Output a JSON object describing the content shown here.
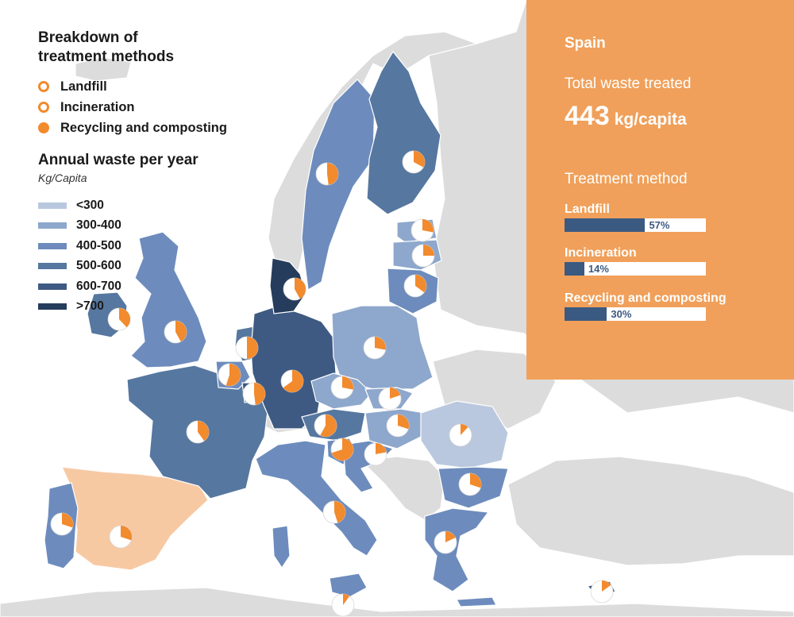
{
  "legend": {
    "title_line1": "Breakdown of",
    "title_line2": "treatment methods",
    "methods": [
      {
        "label": "Landfill",
        "style": "outline",
        "color": "#f28a2e"
      },
      {
        "label": "Incineration",
        "style": "outline",
        "color": "#f28a2e"
      },
      {
        "label": "Recycling and composting",
        "style": "filled",
        "color": "#f28a2e"
      }
    ],
    "waste_title": "Annual waste per year",
    "waste_subtitle": "Kg/Capita",
    "scale": [
      {
        "label": "<300",
        "color": "#b9c8de"
      },
      {
        "label": "300-400",
        "color": "#8ea7cc"
      },
      {
        "label": "400-500",
        "color": "#6d8cbd"
      },
      {
        "label": "500-600",
        "color": "#56779f"
      },
      {
        "label": "600-700",
        "color": "#3e5a82"
      },
      {
        "label": ">700",
        "color": "#263c5c"
      }
    ]
  },
  "panel": {
    "country": "Spain",
    "total_label": "Total waste treated",
    "total_value": "443",
    "total_unit": "kg/capita",
    "method_heading": "Treatment method",
    "bars": [
      {
        "label": "Landfill",
        "value": 57,
        "value_label": "57%"
      },
      {
        "label": "Incineration",
        "value": 14,
        "value_label": "14%"
      },
      {
        "label": "Recycling and composting",
        "value": 30,
        "value_label": "30%"
      }
    ],
    "background_color": "#f0a05a",
    "bar_color": "#3b5a82"
  },
  "map": {
    "highlighted_country": "Spain",
    "highlight_color": "#f7c9a3",
    "non_eu_color": "#dcdcdc",
    "recycling_color": "#f28a2e",
    "countries": [
      {
        "id": "spain",
        "band": "400-500",
        "recycling": 0.3
      },
      {
        "id": "portugal",
        "band": "400-500",
        "recycling": 0.3
      },
      {
        "id": "france",
        "band": "500-600",
        "recycling": 0.4
      },
      {
        "id": "uk",
        "band": "400-500",
        "recycling": 0.42
      },
      {
        "id": "ireland",
        "band": "500-600",
        "recycling": 0.38
      },
      {
        "id": "belgium",
        "band": "400-500",
        "recycling": 0.55
      },
      {
        "id": "netherlands",
        "band": "500-600",
        "recycling": 0.5
      },
      {
        "id": "luxembourg",
        "band": "600-700",
        "recycling": 0.48
      },
      {
        "id": "germany",
        "band": ">700",
        "recycling": 0.65
      },
      {
        "id": "denmark",
        "band": ">700",
        "recycling": 0.42
      },
      {
        "id": "sweden",
        "band": "400-500",
        "recycling": 0.48
      },
      {
        "id": "finland",
        "band": "500-600",
        "recycling": 0.33
      },
      {
        "id": "estonia",
        "band": "300-400",
        "recycling": 0.28
      },
      {
        "id": "latvia",
        "band": "300-400",
        "recycling": 0.25
      },
      {
        "id": "lithuania",
        "band": "400-500",
        "recycling": 0.35
      },
      {
        "id": "poland",
        "band": "300-400",
        "recycling": 0.28
      },
      {
        "id": "czechia",
        "band": "300-400",
        "recycling": 0.28
      },
      {
        "id": "slovakia",
        "band": "300-400",
        "recycling": 0.2
      },
      {
        "id": "austria",
        "band": "500-600",
        "recycling": 0.58
      },
      {
        "id": "hungary",
        "band": "300-400",
        "recycling": 0.3
      },
      {
        "id": "slovenia",
        "band": "400-500",
        "recycling": 0.7
      },
      {
        "id": "croatia",
        "band": "400-500",
        "recycling": 0.22
      },
      {
        "id": "italy",
        "band": "400-500",
        "recycling": 0.45
      },
      {
        "id": "romania",
        "band": "<300",
        "recycling": 0.12
      },
      {
        "id": "bulgaria",
        "band": "400-500",
        "recycling": 0.3
      },
      {
        "id": "greece",
        "band": "400-500",
        "recycling": 0.18
      },
      {
        "id": "cyprus",
        "band": "600-700",
        "recycling": 0.15
      },
      {
        "id": "malta",
        "band": "600-700",
        "recycling": 0.1
      }
    ]
  }
}
